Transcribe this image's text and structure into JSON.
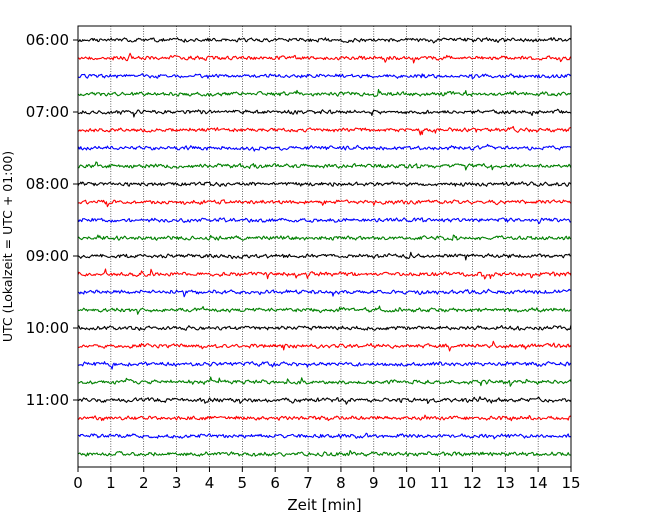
{
  "chart_data": {
    "type": "line",
    "title": "",
    "xlabel": "Zeit  [min]",
    "ylabel": "UTC (Lokalzeit = UTC + 01:00)",
    "xlim": [
      0,
      15
    ],
    "x_ticks": [
      "0",
      "1",
      "2",
      "3",
      "4",
      "5",
      "6",
      "7",
      "8",
      "9",
      "10",
      "11",
      "12",
      "13",
      "14",
      "15"
    ],
    "y_tick_labels": [
      "06:00",
      "07:00",
      "08:00",
      "09:00",
      "10:00",
      "11:00"
    ],
    "grid": "vertical dotted",
    "trace_interval_min": 15,
    "start_time": "06:00",
    "trace_count": 24,
    "trace_colors": [
      "#000000",
      "#ff0000",
      "#0000ff",
      "#008000"
    ],
    "series": [
      {
        "start": "06:00",
        "color": "black"
      },
      {
        "start": "06:15",
        "color": "red"
      },
      {
        "start": "06:30",
        "color": "blue"
      },
      {
        "start": "06:45",
        "color": "green"
      },
      {
        "start": "07:00",
        "color": "black"
      },
      {
        "start": "07:15",
        "color": "red"
      },
      {
        "start": "07:30",
        "color": "blue"
      },
      {
        "start": "07:45",
        "color": "green"
      },
      {
        "start": "08:00",
        "color": "black"
      },
      {
        "start": "08:15",
        "color": "red"
      },
      {
        "start": "08:30",
        "color": "blue"
      },
      {
        "start": "08:45",
        "color": "green"
      },
      {
        "start": "09:00",
        "color": "black"
      },
      {
        "start": "09:15",
        "color": "red"
      },
      {
        "start": "09:30",
        "color": "blue"
      },
      {
        "start": "09:45",
        "color": "green"
      },
      {
        "start": "10:00",
        "color": "black"
      },
      {
        "start": "10:15",
        "color": "red"
      },
      {
        "start": "10:30",
        "color": "blue"
      },
      {
        "start": "10:45",
        "color": "green"
      },
      {
        "start": "11:00",
        "color": "black"
      },
      {
        "start": "11:15",
        "color": "red"
      },
      {
        "start": "11:30",
        "color": "blue"
      },
      {
        "start": "11:45",
        "color": "green"
      }
    ]
  }
}
